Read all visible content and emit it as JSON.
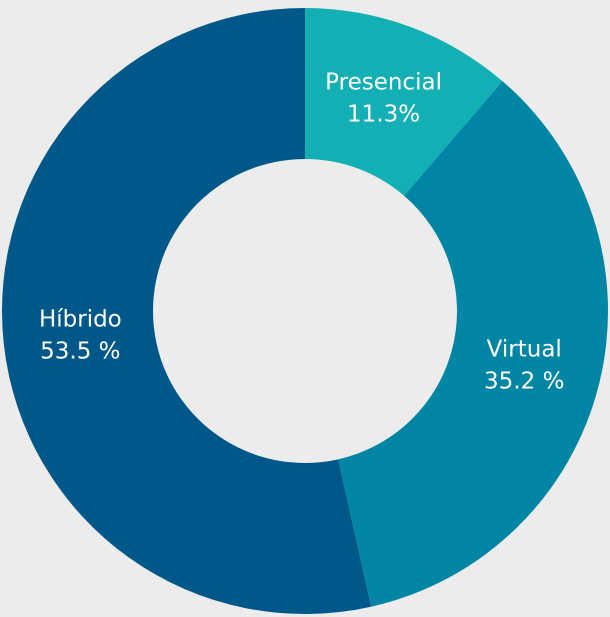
{
  "chart_data": {
    "type": "donut",
    "categories": [
      "Presencial",
      "Virtual",
      "Híbrido"
    ],
    "values": [
      11.3,
      35.2,
      53.5
    ],
    "value_labels": [
      "11.3%",
      "35.2 %",
      "53.5 %"
    ],
    "colors": [
      "#12b0b5",
      "#0086a4",
      "#005789"
    ]
  }
}
